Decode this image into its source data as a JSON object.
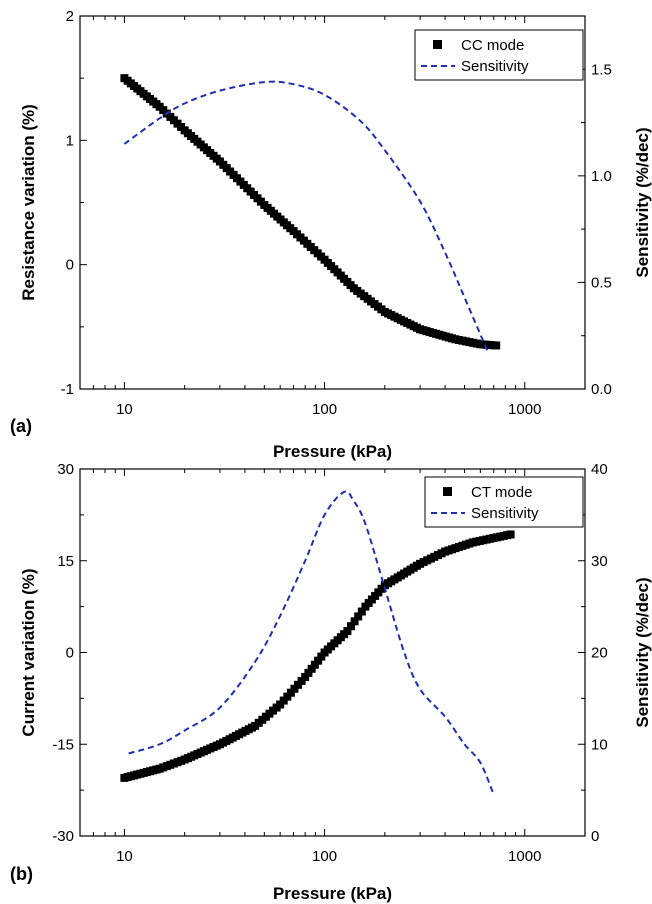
{
  "chart_data": [
    {
      "type": "scatter",
      "panel_label": "(a)",
      "xlabel": "Pressure (kPa)",
      "ylabel": "Resistance variation (%)",
      "y2label": "Sensitivity (%/dec)",
      "xscale": "log",
      "xlim": [
        6,
        2000
      ],
      "ylim": [
        -1,
        2
      ],
      "y2lim": [
        0.0,
        1.75
      ],
      "x_ticks": [
        10,
        100,
        1000
      ],
      "x_tick_labels": [
        "10",
        "100",
        "1000"
      ],
      "y_ticks": [
        -1,
        0,
        1,
        2
      ],
      "y_tick_labels": [
        "-1",
        "0",
        "1",
        "2"
      ],
      "y2_ticks": [
        0.0,
        0.5,
        1.0,
        1.5
      ],
      "y2_tick_labels": [
        "0.0",
        "0.5",
        "1.0",
        "1.5"
      ],
      "legend_position": "top-right",
      "series": [
        {
          "name": "CC mode",
          "style": "square-markers",
          "axis": "left",
          "color": "#000000",
          "x": [
            10,
            15,
            20,
            30,
            50,
            70,
            100,
            140,
            200,
            300,
            450,
            600,
            720
          ],
          "y": [
            1.5,
            1.27,
            1.08,
            0.83,
            0.48,
            0.27,
            0.04,
            -0.19,
            -0.38,
            -0.52,
            -0.6,
            -0.64,
            -0.65
          ]
        },
        {
          "name": "Sensitivity",
          "style": "dashed-line",
          "axis": "right",
          "color": "#1f2fb0",
          "x": [
            10,
            15,
            20,
            30,
            50,
            70,
            100,
            150,
            200,
            300,
            400,
            500,
            650
          ],
          "y": [
            1.15,
            1.27,
            1.34,
            1.4,
            1.44,
            1.43,
            1.38,
            1.26,
            1.12,
            0.88,
            0.64,
            0.43,
            0.18
          ]
        }
      ]
    },
    {
      "type": "scatter",
      "panel_label": "(b)",
      "xlabel": "Pressure (kPa)",
      "ylabel": "Current variation (%)",
      "y2label": "Sensitivity (%/dec)",
      "xscale": "log",
      "xlim": [
        6,
        2000
      ],
      "ylim": [
        -30,
        30
      ],
      "y2lim": [
        0,
        40
      ],
      "x_ticks": [
        10,
        100,
        1000
      ],
      "x_tick_labels": [
        "10",
        "100",
        "1000"
      ],
      "y_ticks": [
        -30,
        -15,
        0,
        15,
        30
      ],
      "y_tick_labels": [
        "-30",
        "-15",
        "0",
        "15",
        "30"
      ],
      "y2_ticks": [
        0,
        10,
        20,
        30,
        40
      ],
      "y2_tick_labels": [
        "0",
        "10",
        "20",
        "30",
        "40"
      ],
      "legend_position": "top-right",
      "series": [
        {
          "name": "CT mode",
          "style": "square-markers",
          "axis": "left",
          "color": "#000000",
          "x": [
            10,
            15,
            20,
            30,
            45,
            60,
            80,
            100,
            130,
            160,
            200,
            300,
            400,
            550,
            850
          ],
          "y": [
            -20.5,
            -19,
            -17.5,
            -15,
            -12,
            -8.5,
            -4,
            0,
            3.5,
            7.5,
            11,
            14.5,
            16.5,
            18,
            19.3
          ]
        },
        {
          "name": "Sensitivity",
          "style": "dashed-line",
          "axis": "right",
          "color": "#1f2fb0",
          "x": [
            10.5,
            15,
            20,
            30,
            45,
            60,
            80,
            100,
            125,
            140,
            160,
            200,
            250,
            300,
            400,
            500,
            600,
            700
          ],
          "y": [
            9,
            10,
            11.5,
            14,
            19,
            24,
            30,
            35,
            37.5,
            36.5,
            34,
            27,
            20,
            16,
            13,
            10,
            8,
            4.5
          ]
        }
      ]
    }
  ]
}
